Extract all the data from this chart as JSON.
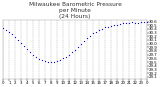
{
  "title": "Milwaukee Barometric Pressure\nper Minute\n(24 Hours)",
  "title_fontsize": 4.2,
  "bg_color": "#ffffff",
  "plot_bg_color": "#ffffff",
  "dot_color": "#0000cc",
  "dot_size": 0.8,
  "grid_color": "#aaaaaa",
  "tick_color": "#000000",
  "title_color": "#333333",
  "ylabel_fontsize": 2.8,
  "xlabel_fontsize": 2.8,
  "xlim": [
    0,
    1440
  ],
  "ylim": [
    29.05,
    30.65
  ],
  "yticks": [
    29.1,
    29.2,
    29.3,
    29.4,
    29.5,
    29.6,
    29.7,
    29.8,
    29.9,
    30.0,
    30.1,
    30.2,
    30.3,
    30.4,
    30.5,
    30.6
  ],
  "xtick_positions": [
    0,
    60,
    120,
    180,
    240,
    300,
    360,
    420,
    480,
    540,
    600,
    660,
    720,
    780,
    840,
    900,
    960,
    1020,
    1080,
    1140,
    1200,
    1260,
    1320,
    1380,
    1440
  ],
  "xtick_labels": [
    "0",
    "1",
    "2",
    "3",
    "4",
    "5",
    "6",
    "7",
    "8",
    "9",
    "10",
    "11",
    "12",
    "13",
    "14",
    "15",
    "16",
    "17",
    "18",
    "19",
    "20",
    "21",
    "22",
    "23",
    "0"
  ],
  "data_x": [
    0,
    30,
    60,
    90,
    120,
    150,
    180,
    210,
    240,
    270,
    300,
    330,
    360,
    390,
    420,
    450,
    480,
    510,
    540,
    570,
    600,
    630,
    660,
    690,
    720,
    750,
    780,
    810,
    840,
    870,
    900,
    930,
    960,
    990,
    1020,
    1050,
    1080,
    1110,
    1140,
    1170,
    1200,
    1230,
    1260,
    1290,
    1320,
    1350,
    1380,
    1410,
    1440
  ],
  "data_y": [
    30.42,
    30.37,
    30.32,
    30.25,
    30.17,
    30.1,
    30.02,
    29.94,
    29.86,
    29.78,
    29.7,
    29.63,
    29.58,
    29.55,
    29.52,
    29.5,
    29.5,
    29.51,
    29.53,
    29.56,
    29.6,
    29.65,
    29.7,
    29.76,
    29.84,
    29.92,
    30.0,
    30.08,
    30.15,
    30.22,
    30.28,
    30.33,
    30.37,
    30.41,
    30.44,
    30.46,
    30.48,
    30.5,
    30.52,
    30.53,
    30.55,
    30.56,
    30.57,
    30.58,
    30.57,
    30.55,
    30.58,
    30.6,
    30.58
  ]
}
